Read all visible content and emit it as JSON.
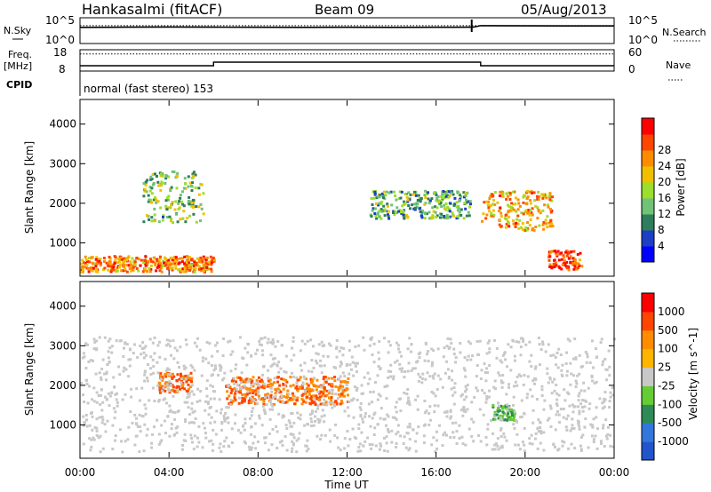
{
  "header": {
    "station": "Hankasalmi (fitACF)",
    "beam": "Beam 09",
    "date": "05/Aug/2013"
  },
  "left_labels": {
    "nsky": "N.Sky",
    "freq_line1": "Freq.",
    "freq_line2": "[MHz]",
    "cpid": "CPID"
  },
  "right_labels": {
    "nsearch": "N.Search",
    "nave": "Nave"
  },
  "cpid_text": "normal (fast stereo) 153",
  "axis_ticks": {
    "nsky_top": "10^5",
    "nsky_bottom": "10^0",
    "freq_top": "18",
    "freq_bottom": "8",
    "nave_top": "60",
    "nave_bottom": "0"
  },
  "chart_data": [
    {
      "type": "line",
      "panel": "noise",
      "x": [
        "00:00",
        "02:00",
        "04:00",
        "06:00",
        "08:00",
        "10:00",
        "12:00",
        "14:00",
        "16:00",
        "17:40",
        "18:00",
        "20:00",
        "22:00",
        "24:00"
      ],
      "series": [
        {
          "name": "N.Sky",
          "values": [
            1500,
            1700,
            1800,
            1700,
            1600,
            1500,
            1600,
            1500,
            1600,
            1700,
            3500,
            3200,
            3000,
            3000
          ]
        },
        {
          "name": "N.Search",
          "values": [
            3500,
            3500,
            3500,
            3500,
            3500,
            3500,
            3500,
            3500,
            3500,
            3500,
            3500,
            3500,
            3500,
            3500
          ]
        }
      ],
      "ylim": [
        1,
        100000
      ],
      "log_scale": true
    },
    {
      "type": "line",
      "panel": "freq_nave",
      "x": [
        "00:00",
        "02:30",
        "06:00",
        "12:00",
        "18:00",
        "24:00"
      ],
      "series": [
        {
          "name": "Freq",
          "values": [
            10,
            10,
            12,
            12,
            10,
            10
          ]
        },
        {
          "name": "Nave",
          "values": [
            52,
            52,
            52,
            52,
            52,
            52
          ]
        }
      ],
      "ylim_freq": [
        8,
        18
      ],
      "ylim_nave": [
        0,
        60
      ]
    },
    {
      "type": "heatmap",
      "panel": "power",
      "xlabel": "",
      "ylabel": "Slant Range [km]",
      "x_ticks": [
        "00:00",
        "04:00",
        "08:00",
        "12:00",
        "16:00",
        "20:00",
        "00:00"
      ],
      "y_ticks": [
        "1000",
        "2000",
        "3000",
        "4000"
      ],
      "ylim": [
        180,
        4600
      ],
      "colorbar_label": "Power [dB]",
      "colorbar_ticks": [
        "4",
        "8",
        "12",
        "16",
        "20",
        "24",
        "28"
      ],
      "colorbar_colors": [
        "#0000ff",
        "#1c3fc6",
        "#2e7d5b",
        "#6fc276",
        "#9bde2b",
        "#f0c000",
        "#ff8c00",
        "#ff4500",
        "#ff0000"
      ],
      "features": [
        {
          "name": "near-range band",
          "t_start": 0.0,
          "t_end": 6.0,
          "range_km": [
            250,
            650
          ],
          "power_db": 24
        },
        {
          "name": "morning diagonal",
          "t_start": 2.8,
          "t_end": 5.5,
          "range_km": [
            1500,
            2800
          ],
          "power_db": 14
        },
        {
          "name": "afternoon band",
          "t_start": 13.0,
          "t_end": 17.5,
          "range_km": [
            1600,
            2300
          ],
          "power_db": 12
        },
        {
          "name": "evening patch",
          "t_start": 18.0,
          "t_end": 21.2,
          "range_km": [
            1300,
            2300
          ],
          "power_db": 22
        },
        {
          "name": "late near-range",
          "t_start": 21.0,
          "t_end": 22.5,
          "range_km": [
            300,
            800
          ],
          "power_db": 28
        }
      ]
    },
    {
      "type": "heatmap",
      "panel": "velocity",
      "xlabel": "Time UT",
      "ylabel": "Slant Range [km]",
      "x_ticks": [
        "00:00",
        "04:00",
        "08:00",
        "12:00",
        "16:00",
        "20:00",
        "00:00"
      ],
      "y_ticks": [
        "1000",
        "2000",
        "3000",
        "4000"
      ],
      "ylim": [
        180,
        4600
      ],
      "colorbar_label": "Velocity [m s^-1]",
      "colorbar_ticks": [
        "1000",
        "500",
        "100",
        "25",
        "-25",
        "-100",
        "-500",
        "-1000"
      ],
      "colorbar_colors": [
        "#2255cc",
        "#3377dd",
        "#2e8b57",
        "#66cc33",
        "#c8c8c8",
        "#ffb400",
        "#ff8c00",
        "#ff4500",
        "#ff0000"
      ],
      "features": [
        {
          "name": "westward flow",
          "t_start": 6.5,
          "t_end": 12.0,
          "range_km": [
            1500,
            2200
          ],
          "velocity": -400
        },
        {
          "name": "morning diagonal",
          "t_start": 3.5,
          "t_end": 5.0,
          "range_km": [
            1800,
            2300
          ],
          "velocity": -600
        },
        {
          "name": "evening eastward",
          "t_start": 18.5,
          "t_end": 19.5,
          "range_km": [
            1100,
            1500
          ],
          "velocity": 200
        },
        {
          "name": "ground scatter",
          "t_start": 0.0,
          "t_end": 24.0,
          "range_km": [
            300,
            3200
          ],
          "velocity": 0
        }
      ]
    }
  ]
}
